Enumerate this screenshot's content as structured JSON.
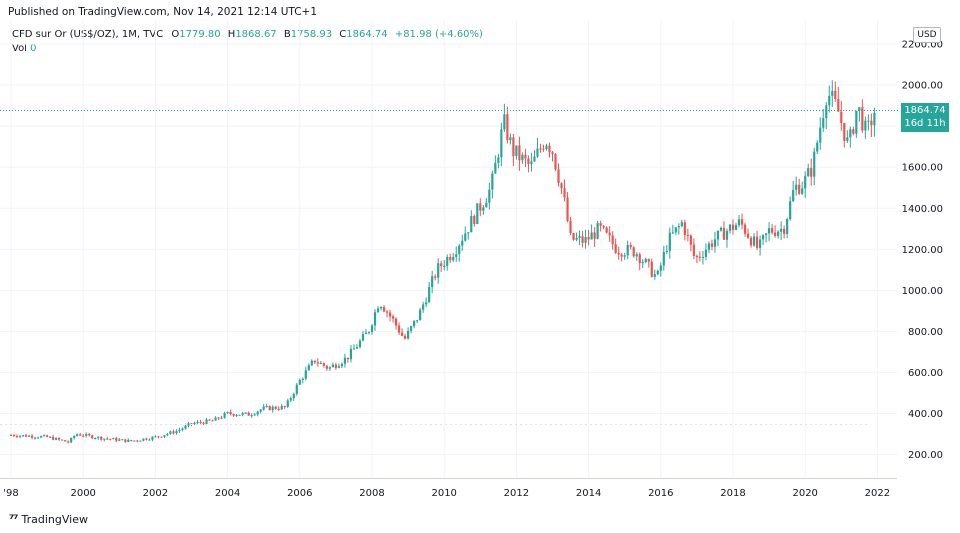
{
  "header": {
    "published": "Published on TradingView.com, Nov 14, 2021 12:14 UTC+1"
  },
  "legend": {
    "symbol": "CFD sur Or (US$/OZ), 1M, TVC",
    "o_label": "O",
    "o_value": "1779.80",
    "h_label": "H",
    "h_value": "1868.67",
    "b_label": "B",
    "b_value": "1758.93",
    "c_label": "C",
    "c_value": "1864.74",
    "change": "+81.98 (+4.60%)",
    "vol_label": "Vol",
    "vol_value": "0"
  },
  "price_tag": {
    "price": "1864.74",
    "countdown": "16d 11h"
  },
  "currency": "USD",
  "footer": {
    "brand": "TradingView"
  },
  "colors": {
    "up": "#26a69a",
    "down": "#ef5350",
    "grid": "#f0f3fa",
    "text": "#131722"
  },
  "chart_data": {
    "type": "candlestick",
    "interval": "1M",
    "x_ticks": [
      "'98",
      "2000",
      "2002",
      "2004",
      "2006",
      "2008",
      "2010",
      "2012",
      "2014",
      "2016",
      "2018",
      "2020",
      "2022"
    ],
    "y_ticks": [
      "200.00",
      "400.00",
      "600.00",
      "800.00",
      "1000.00",
      "1200.00",
      "1400.00",
      "1600.00",
      "1800.00",
      "2000.00",
      "2200.00"
    ],
    "x_range": [
      1998.0,
      2022.4
    ],
    "y_range": [
      100,
      2280
    ],
    "last_close": 1864.74,
    "control_points": [
      [
        1998.0,
        295
      ],
      [
        1999.0,
        285
      ],
      [
        1999.6,
        260
      ],
      [
        1999.8,
        300
      ],
      [
        2000.5,
        280
      ],
      [
        2001.3,
        265
      ],
      [
        2002.0,
        285
      ],
      [
        2002.6,
        315
      ],
      [
        2003.0,
        350
      ],
      [
        2003.6,
        365
      ],
      [
        2004.0,
        400
      ],
      [
        2004.6,
        395
      ],
      [
        2005.0,
        425
      ],
      [
        2005.6,
        430
      ],
      [
        2006.0,
        560
      ],
      [
        2006.4,
        660
      ],
      [
        2006.8,
        620
      ],
      [
        2007.3,
        670
      ],
      [
        2007.9,
        800
      ],
      [
        2008.2,
        950
      ],
      [
        2008.6,
        850
      ],
      [
        2008.9,
        760
      ],
      [
        2009.3,
        880
      ],
      [
        2009.8,
        1100
      ],
      [
        2010.3,
        1200
      ],
      [
        2010.9,
        1380
      ],
      [
        2011.3,
        1500
      ],
      [
        2011.65,
        1820
      ],
      [
        2011.9,
        1680
      ],
      [
        2012.4,
        1600
      ],
      [
        2012.8,
        1740
      ],
      [
        2013.0,
        1680
      ],
      [
        2013.3,
        1460
      ],
      [
        2013.5,
        1250
      ],
      [
        2013.9,
        1240
      ],
      [
        2014.3,
        1300
      ],
      [
        2014.8,
        1200
      ],
      [
        2015.3,
        1190
      ],
      [
        2015.9,
        1060
      ],
      [
        2016.2,
        1240
      ],
      [
        2016.6,
        1330
      ],
      [
        2016.95,
        1150
      ],
      [
        2017.5,
        1250
      ],
      [
        2017.9,
        1300
      ],
      [
        2018.2,
        1330
      ],
      [
        2018.7,
        1200
      ],
      [
        2019.0,
        1290
      ],
      [
        2019.4,
        1300
      ],
      [
        2019.7,
        1500
      ],
      [
        2019.95,
        1520
      ],
      [
        2020.2,
        1600
      ],
      [
        2020.6,
        1970
      ],
      [
        2020.9,
        1880
      ],
      [
        2021.2,
        1700
      ],
      [
        2021.45,
        1900
      ],
      [
        2021.7,
        1760
      ],
      [
        2021.9,
        1865
      ]
    ]
  }
}
